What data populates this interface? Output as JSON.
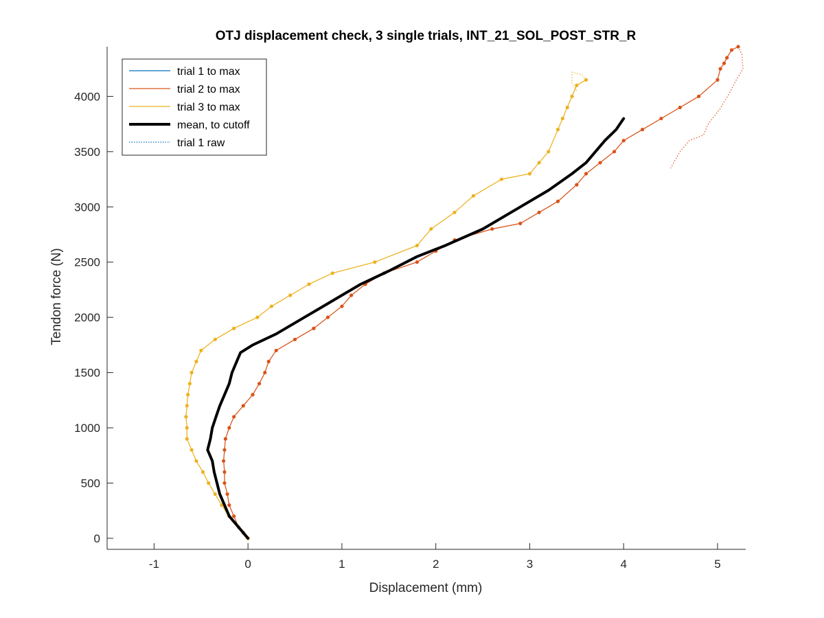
{
  "chart_data": {
    "type": "line",
    "title": "OTJ displacement check, 3 single trials, INT_21_SOL_POST_STR_R",
    "xlabel": "Displacement (mm)",
    "ylabel": "Tendon force (N)",
    "xlim": [
      -1.5,
      5.3
    ],
    "ylim": [
      -100,
      4450
    ],
    "xticks": [
      -1,
      0,
      1,
      2,
      3,
      4,
      5
    ],
    "yticks": [
      0,
      500,
      1000,
      1500,
      2000,
      2500,
      3000,
      3500,
      4000
    ],
    "xtick_labels": [
      "-1",
      "0",
      "1",
      "2",
      "3",
      "4",
      "5"
    ],
    "ytick_labels": [
      "0",
      "500",
      "1000",
      "1500",
      "2000",
      "2500",
      "3000",
      "3500",
      "4000"
    ],
    "grid": false,
    "legend_position": "top-left",
    "series": [
      {
        "name": "trial 1 to max",
        "color": "#0072BD",
        "style": "solid",
        "points": []
      },
      {
        "name": "trial 2 to max",
        "color": "#D95319",
        "style": "solid-markers",
        "points": [
          [
            0,
            0
          ],
          [
            -0.05,
            50
          ],
          [
            -0.1,
            100
          ],
          [
            -0.15,
            200
          ],
          [
            -0.2,
            300
          ],
          [
            -0.22,
            400
          ],
          [
            -0.25,
            500
          ],
          [
            -0.25,
            600
          ],
          [
            -0.26,
            700
          ],
          [
            -0.25,
            800
          ],
          [
            -0.24,
            900
          ],
          [
            -0.2,
            1000
          ],
          [
            -0.15,
            1100
          ],
          [
            -0.05,
            1200
          ],
          [
            0.05,
            1300
          ],
          [
            0.12,
            1400
          ],
          [
            0.18,
            1500
          ],
          [
            0.22,
            1600
          ],
          [
            0.3,
            1700
          ],
          [
            0.5,
            1800
          ],
          [
            0.7,
            1900
          ],
          [
            0.85,
            2000
          ],
          [
            1.0,
            2100
          ],
          [
            1.1,
            2200
          ],
          [
            1.25,
            2300
          ],
          [
            1.45,
            2400
          ],
          [
            1.8,
            2500
          ],
          [
            2.0,
            2600
          ],
          [
            2.2,
            2700
          ],
          [
            2.6,
            2800
          ],
          [
            2.9,
            2850
          ],
          [
            3.1,
            2950
          ],
          [
            3.3,
            3050
          ],
          [
            3.5,
            3200
          ],
          [
            3.6,
            3300
          ],
          [
            3.75,
            3400
          ],
          [
            3.9,
            3500
          ],
          [
            4.0,
            3600
          ],
          [
            4.2,
            3700
          ],
          [
            4.4,
            3800
          ],
          [
            4.6,
            3900
          ],
          [
            4.8,
            4000
          ],
          [
            5.0,
            4150
          ],
          [
            5.03,
            4250
          ],
          [
            5.07,
            4300
          ],
          [
            5.1,
            4350
          ],
          [
            5.15,
            4420
          ],
          [
            5.22,
            4450
          ]
        ]
      },
      {
        "name": "trial 3 to max",
        "color": "#EDB120",
        "style": "solid-markers",
        "points": [
          [
            0,
            0
          ],
          [
            -0.1,
            100
          ],
          [
            -0.2,
            200
          ],
          [
            -0.28,
            300
          ],
          [
            -0.35,
            400
          ],
          [
            -0.42,
            500
          ],
          [
            -0.48,
            600
          ],
          [
            -0.55,
            700
          ],
          [
            -0.6,
            800
          ],
          [
            -0.65,
            900
          ],
          [
            -0.65,
            1000
          ],
          [
            -0.66,
            1100
          ],
          [
            -0.65,
            1200
          ],
          [
            -0.64,
            1300
          ],
          [
            -0.62,
            1400
          ],
          [
            -0.6,
            1500
          ],
          [
            -0.55,
            1600
          ],
          [
            -0.5,
            1700
          ],
          [
            -0.35,
            1800
          ],
          [
            -0.15,
            1900
          ],
          [
            0.1,
            2000
          ],
          [
            0.25,
            2100
          ],
          [
            0.45,
            2200
          ],
          [
            0.65,
            2300
          ],
          [
            0.9,
            2400
          ],
          [
            1.35,
            2500
          ],
          [
            1.8,
            2650
          ],
          [
            1.95,
            2800
          ],
          [
            2.2,
            2950
          ],
          [
            2.4,
            3100
          ],
          [
            2.7,
            3250
          ],
          [
            3.0,
            3300
          ],
          [
            3.1,
            3400
          ],
          [
            3.2,
            3500
          ],
          [
            3.3,
            3700
          ],
          [
            3.35,
            3800
          ],
          [
            3.4,
            3900
          ],
          [
            3.45,
            4000
          ],
          [
            3.5,
            4100
          ],
          [
            3.6,
            4150
          ]
        ]
      },
      {
        "name": "mean, to cutoff",
        "color": "#000000",
        "style": "thick",
        "points": [
          [
            0,
            0
          ],
          [
            -0.1,
            100
          ],
          [
            -0.2,
            200
          ],
          [
            -0.25,
            300
          ],
          [
            -0.3,
            400
          ],
          [
            -0.33,
            500
          ],
          [
            -0.36,
            600
          ],
          [
            -0.38,
            700
          ],
          [
            -0.43,
            800
          ],
          [
            -0.4,
            900
          ],
          [
            -0.38,
            1000
          ],
          [
            -0.34,
            1100
          ],
          [
            -0.3,
            1200
          ],
          [
            -0.25,
            1300
          ],
          [
            -0.2,
            1400
          ],
          [
            -0.17,
            1500
          ],
          [
            -0.12,
            1600
          ],
          [
            -0.08,
            1680
          ],
          [
            0.05,
            1750
          ],
          [
            0.3,
            1850
          ],
          [
            0.6,
            2000
          ],
          [
            0.8,
            2100
          ],
          [
            1.0,
            2200
          ],
          [
            1.2,
            2300
          ],
          [
            1.5,
            2420
          ],
          [
            1.8,
            2550
          ],
          [
            2.1,
            2650
          ],
          [
            2.5,
            2800
          ],
          [
            2.9,
            3000
          ],
          [
            3.2,
            3150
          ],
          [
            3.45,
            3300
          ],
          [
            3.6,
            3400
          ],
          [
            3.7,
            3500
          ],
          [
            3.8,
            3600
          ],
          [
            3.92,
            3700
          ],
          [
            4.0,
            3800
          ]
        ]
      },
      {
        "name": "trial 1 raw",
        "color": "#0072BD",
        "style": "dotted",
        "points": []
      }
    ],
    "raw_tails": [
      {
        "color": "#D95319",
        "points": [
          [
            5.22,
            4450
          ],
          [
            5.26,
            4380
          ],
          [
            5.27,
            4250
          ],
          [
            5.2,
            4150
          ],
          [
            5.12,
            4020
          ],
          [
            5.02,
            3880
          ],
          [
            4.9,
            3750
          ],
          [
            4.85,
            3650
          ],
          [
            4.7,
            3600
          ],
          [
            4.6,
            3500
          ],
          [
            4.5,
            3350
          ]
        ]
      },
      {
        "color": "#EDB120",
        "points": [
          [
            3.6,
            4150
          ],
          [
            3.55,
            4200
          ],
          [
            3.45,
            4220
          ],
          [
            3.45,
            4120
          ],
          [
            3.5,
            4050
          ]
        ]
      }
    ]
  }
}
